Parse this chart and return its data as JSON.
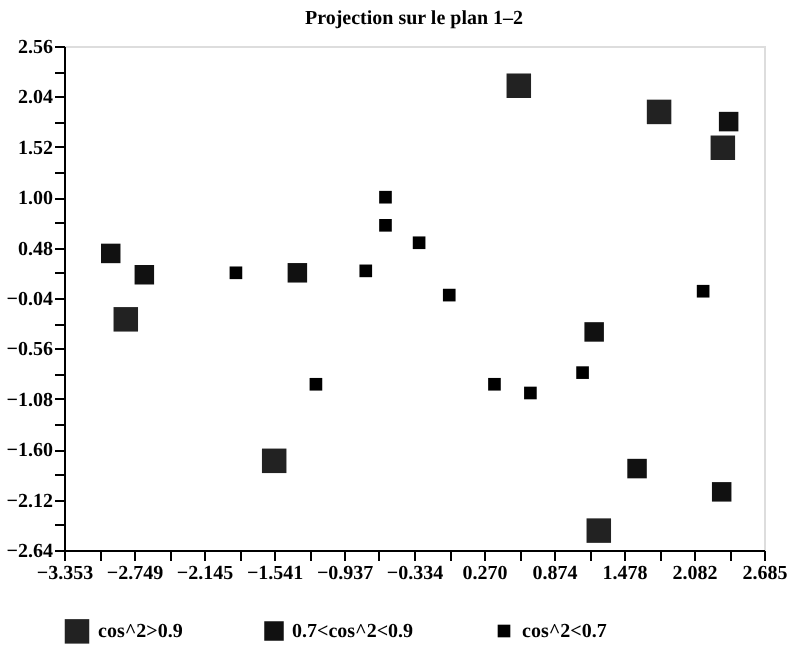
{
  "chart_data": {
    "type": "scatter",
    "title": "Projection sur le plan 1–2",
    "marker": "square",
    "legend": "bottom",
    "grid": false,
    "xlim": [
      -3.353,
      2.685
    ],
    "ylim": [
      -2.64,
      2.56
    ],
    "xticks": [
      {
        "value": -3.353,
        "label": "−3.353"
      },
      {
        "value": -3.051,
        "label": null
      },
      {
        "value": -2.749,
        "label": "−2.749"
      },
      {
        "value": -2.447,
        "label": null
      },
      {
        "value": -2.145,
        "label": "−2.145"
      },
      {
        "value": -1.843,
        "label": null
      },
      {
        "value": -1.541,
        "label": "−1.541"
      },
      {
        "value": -1.239,
        "label": null
      },
      {
        "value": -0.937,
        "label": "−0.937"
      },
      {
        "value": -0.636,
        "label": null
      },
      {
        "value": -0.334,
        "label": "−0.334"
      },
      {
        "value": -0.032,
        "label": null
      },
      {
        "value": 0.27,
        "label": "0.270"
      },
      {
        "value": 0.572,
        "label": null
      },
      {
        "value": 0.874,
        "label": "0.874"
      },
      {
        "value": 1.176,
        "label": null
      },
      {
        "value": 1.478,
        "label": "1.478"
      },
      {
        "value": 1.78,
        "label": null
      },
      {
        "value": 2.082,
        "label": "2.082"
      },
      {
        "value": 2.384,
        "label": null
      },
      {
        "value": 2.685,
        "label": "2.685"
      }
    ],
    "yticks": [
      {
        "value": 2.56,
        "label": "2.56"
      },
      {
        "value": 2.3,
        "label": null
      },
      {
        "value": 2.04,
        "label": "2.04"
      },
      {
        "value": 1.78,
        "label": null
      },
      {
        "value": 1.52,
        "label": "1.52"
      },
      {
        "value": 1.26,
        "label": null
      },
      {
        "value": 1.0,
        "label": "1.00"
      },
      {
        "value": 0.74,
        "label": null
      },
      {
        "value": 0.48,
        "label": "0.48"
      },
      {
        "value": 0.22,
        "label": null
      },
      {
        "value": -0.04,
        "label": "−0.04"
      },
      {
        "value": -0.3,
        "label": null
      },
      {
        "value": -0.56,
        "label": "−0.56"
      },
      {
        "value": -0.82,
        "label": null
      },
      {
        "value": -1.08,
        "label": "−1.08"
      },
      {
        "value": -1.34,
        "label": null
      },
      {
        "value": -1.6,
        "label": "−1.60"
      },
      {
        "value": -1.86,
        "label": null
      },
      {
        "value": -2.12,
        "label": "−2.12"
      },
      {
        "value": -2.38,
        "label": null
      },
      {
        "value": -2.64,
        "label": "−2.64"
      }
    ],
    "series": [
      {
        "name": "cos^2>0.9",
        "color": "#222222",
        "x": [
          0.57,
          1.78,
          2.33,
          -2.82,
          -1.54,
          1.26
        ],
        "values": [
          2.15,
          1.88,
          1.51,
          -0.26,
          -1.72,
          -2.44
        ]
      },
      {
        "name": "0.7<cos^2<0.9",
        "color": "#111111",
        "x": [
          -2.95,
          -2.66,
          -1.34,
          2.38,
          1.22,
          1.59,
          2.32
        ],
        "values": [
          0.42,
          0.2,
          0.22,
          1.78,
          -0.39,
          -1.8,
          -2.04
        ]
      },
      {
        "name": "cos^2<0.7",
        "color": "#000000",
        "x": [
          -1.87,
          -0.58,
          -0.58,
          -0.29,
          -0.75,
          -0.03,
          -1.18,
          0.36,
          0.67,
          1.12,
          2.16
        ],
        "values": [
          0.22,
          1.0,
          0.71,
          0.53,
          0.24,
          -0.01,
          -0.93,
          -0.93,
          -1.02,
          -0.81,
          0.03
        ]
      }
    ]
  }
}
